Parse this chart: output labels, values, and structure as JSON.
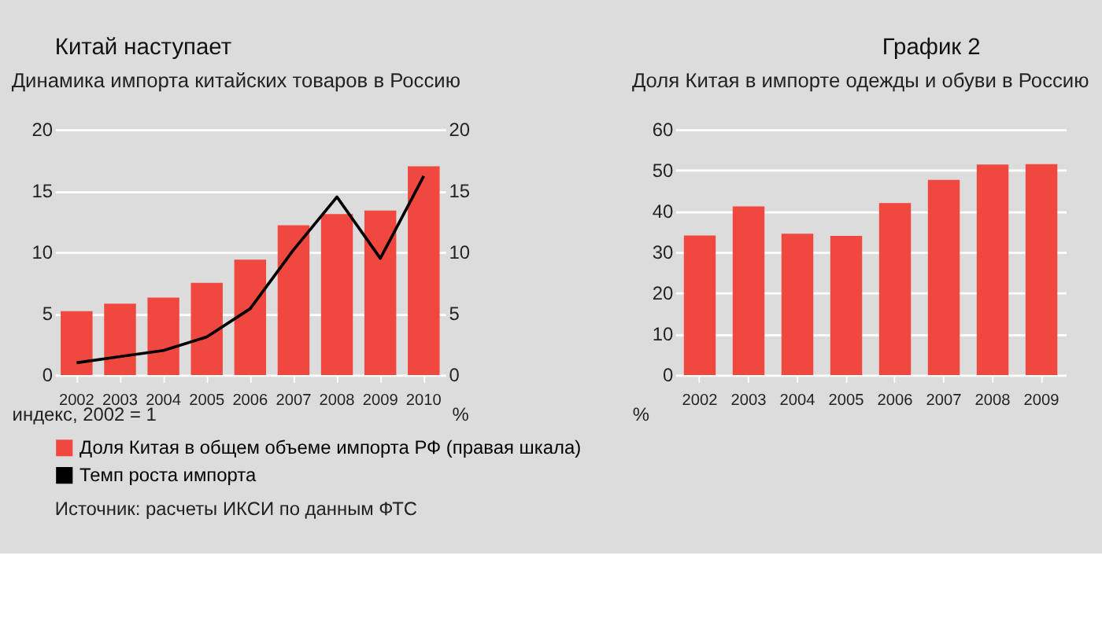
{
  "chart_data": [
    {
      "type": "bar",
      "title": "Динамика импорта китайских товаров в Россию",
      "categories": [
        "2002",
        "2003",
        "2004",
        "2005",
        "2006",
        "2007",
        "2008",
        "2009",
        "2010"
      ],
      "series": [
        {
          "name": "Доля Китая в общем объеме импорта РФ (правая шкала)",
          "color": "#f0473f",
          "axis": "y2",
          "values": [
            5.2,
            5.8,
            6.3,
            7.5,
            9.4,
            12.2,
            13.1,
            13.4,
            17.0
          ]
        },
        {
          "name": "Темп роста импорта",
          "color": "#000000",
          "type": "line",
          "values": [
            1.0,
            1.5,
            2.0,
            3.1,
            5.4,
            10.2,
            14.5,
            9.5,
            16.2
          ]
        }
      ],
      "ylabel": "индекс, 2002 = 1",
      "y2label": "%",
      "ylim": [
        0,
        20
      ],
      "yticks": [
        0,
        5,
        10,
        15,
        20
      ],
      "y2lim": [
        0,
        20
      ],
      "y2ticks": [
        0,
        5,
        10,
        15,
        20
      ],
      "grid": "y",
      "legend": "bottom",
      "marker": "none",
      "annotations": [
        "Китай наступает",
        "Источник: расчеты ИКСИ по данным ФТС"
      ]
    },
    {
      "type": "bar",
      "title": "Доля Китая в импорте одежды и обуви в Россию",
      "categories": [
        "2002",
        "2003",
        "2004",
        "2005",
        "2006",
        "2007",
        "2008",
        "2009"
      ],
      "values": [
        34.1,
        41.2,
        34.5,
        34.0,
        42.0,
        47.7,
        51.4,
        51.5
      ],
      "color": "#f0473f",
      "ylabel": "%",
      "ylim": [
        0,
        60
      ],
      "yticks": [
        0,
        10,
        20,
        30,
        40,
        50,
        60
      ],
      "grid": "y",
      "annotations": [
        "График 2"
      ]
    }
  ]
}
